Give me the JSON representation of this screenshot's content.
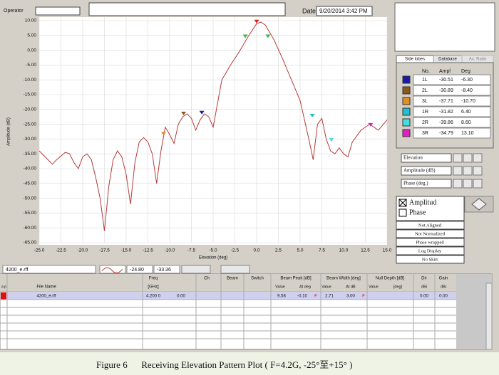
{
  "header": {
    "operator_label": "Operator",
    "date_label": "Date",
    "date": "9/20/2014 3:42 PM"
  },
  "chart_data": {
    "type": "line",
    "color": "#b83a3a",
    "grid": true,
    "x_label": "Elevation (deg)",
    "y_label": "Amplitude (dB)",
    "xlim": [
      -25,
      15
    ],
    "xticks": [
      {
        "value": -25,
        "label": "-25.0"
      },
      -22.5,
      {
        "value": -20,
        "label": "-20.0"
      },
      -17.5,
      {
        "value": -15,
        "label": "-15.0"
      },
      -12.5,
      {
        "value": -10,
        "label": "-10.0"
      },
      -7.5,
      {
        "value": -5,
        "label": "-5.0"
      },
      -2.5,
      {
        "value": 0,
        "label": "0.0"
      },
      2.5,
      {
        "value": 5,
        "label": "5.0"
      },
      7.5,
      {
        "value": 10,
        "label": "10.0"
      },
      12.5,
      {
        "value": 15,
        "label": "15.0"
      }
    ],
    "ylim": [
      -65,
      10
    ],
    "yticks": [
      {
        "value": 10,
        "label": "10.00"
      },
      {
        "value": 5,
        "label": "5.00"
      },
      {
        "value": 0,
        "label": "0.00"
      },
      {
        "value": -5,
        "label": "-5.00"
      },
      {
        "value": -10,
        "label": "-10.00"
      },
      {
        "value": -15,
        "label": "-15.00"
      },
      {
        "value": -20,
        "label": "-20.00"
      },
      {
        "value": -25,
        "label": "-25.00"
      },
      {
        "value": -30,
        "label": "-30.00"
      },
      {
        "value": -35,
        "label": "-35.00"
      },
      {
        "value": -40,
        "label": "-40.00"
      },
      {
        "value": -45,
        "label": "-45.00"
      },
      {
        "value": -50,
        "label": "-50.00"
      },
      {
        "value": -55,
        "label": "-55.00"
      },
      {
        "value": -60,
        "label": "-60.00"
      },
      {
        "value": -65,
        "label": "-65.00"
      }
    ],
    "x": [
      -25,
      -24,
      -23.5,
      -23,
      -22,
      -21.5,
      -21,
      -20.5,
      -20,
      -19.5,
      -19,
      -18.5,
      -18,
      -17.5,
      -17,
      -16.5,
      -16,
      -15.5,
      -15,
      -14.5,
      -14,
      -13.5,
      -13,
      -12.5,
      -12,
      -11.5,
      -11,
      -10.5,
      -10,
      -9.5,
      -9,
      -8.5,
      -8,
      -7.5,
      -7,
      -6.5,
      -6,
      -5.5,
      -5,
      -4.5,
      -4,
      -3,
      -2,
      -1,
      0,
      0.5,
      1,
      2,
      3,
      4,
      5,
      6,
      6.5,
      7,
      7.5,
      8,
      8.5,
      9,
      9.5,
      10,
      10.5,
      11,
      12,
      13,
      14,
      15
    ],
    "values": [
      -34,
      -37,
      -38.5,
      -37,
      -34.5,
      -35,
      -38,
      -40,
      -36,
      -35,
      -37,
      -43,
      -50,
      -61,
      -46,
      -37,
      -34,
      -36,
      -42,
      -52,
      -38,
      -31,
      -29.5,
      -31,
      -35,
      -45,
      -34,
      -26,
      -28.5,
      -31.5,
      -25,
      -22.5,
      -21.5,
      -23,
      -27,
      -23.5,
      -21.5,
      -22.5,
      -26,
      -18,
      -10,
      -5,
      -0.5,
      4.5,
      9,
      9.5,
      8.5,
      3.5,
      -3,
      -10,
      -17,
      -30,
      -37,
      -25,
      -23,
      -30,
      -34,
      -35,
      -33,
      -35,
      -36,
      -31,
      -27,
      -25,
      -27,
      -23.5
    ],
    "markers": [
      {
        "x": -1.3,
        "y": 4.6,
        "color": "#3cb83c"
      },
      {
        "x": 0,
        "y": 9.58,
        "color": "#e02020"
      },
      {
        "x": 1.3,
        "y": 4.6,
        "color": "#3cb83c"
      },
      {
        "x": -6.3,
        "y": -21.2,
        "color": "#1a1aa8"
      },
      {
        "x": -8.4,
        "y": -21.5,
        "color": "#8b5a1a"
      },
      {
        "x": -10.7,
        "y": -28.3,
        "color": "#e09020"
      },
      {
        "x": 6.4,
        "y": -22.2,
        "color": "#20c0d0"
      },
      {
        "x": 8.6,
        "y": -30.4,
        "color": "#40e0e0"
      },
      {
        "x": 13.1,
        "y": -25.3,
        "color": "#e020c0"
      }
    ]
  },
  "tabs": [
    "Side lobes",
    "Database",
    "Ax. Ratio"
  ],
  "sidelobes": {
    "columns": [
      "No.",
      "Ampl",
      "Deg"
    ],
    "rows": [
      [
        "1L",
        "-30.51",
        "-6.30"
      ],
      [
        "2L",
        "-30.89",
        "-8.40"
      ],
      [
        "3L",
        "-37.71",
        "-10.70"
      ],
      [
        "1R",
        "-31.82",
        "6.40"
      ],
      [
        "2R",
        "-39.86",
        "8.60"
      ],
      [
        "3R",
        "-34.79",
        "13.10"
      ]
    ],
    "colors": [
      "#1a1aa8",
      "#8b5a1a",
      "#e09020",
      "#20c0d0",
      "#40e0e0",
      "#e020c0"
    ]
  },
  "controls": [
    "Elevation",
    "Amplitude (dB)",
    "Phase (deg.)"
  ],
  "checks": [
    "Amplitud",
    "Phase"
  ],
  "buttons": [
    "Not Aligned",
    "Not Normalized",
    "Phase wrapped",
    "Log Display",
    "No Skirt"
  ],
  "toolbar": {
    "file": "4200_e.rff",
    "x": "-24.80",
    "y": "-33.36"
  },
  "table": {
    "flags": [
      "a",
      "p"
    ],
    "freq": "Freq",
    "freq_unit": "[GHz]",
    "file_name": "File Name",
    "ch": "Ch",
    "beam": "Beam",
    "switch": "Switch",
    "beam_peak": "Beam Peak [dB]",
    "beam_width": "Beam Width [deg]",
    "null_depth": "Null Depth [dB]",
    "dir": "Dir",
    "gain": "Gain",
    "sub": [
      "Value",
      "At deg",
      "Value",
      "At dB",
      "Value",
      "[deg]",
      "dBi",
      "dBi"
    ],
    "row": [
      "4200_e.rff",
      "4.200 0",
      "0.00",
      "9.58",
      "-0.10",
      "F",
      "2.71",
      "3.00",
      "F",
      "0.00",
      "0.00"
    ]
  },
  "caption": "Figure 6      Receiving Elevation Pattern Plot ( F=4.2G, -25°至+15° )"
}
